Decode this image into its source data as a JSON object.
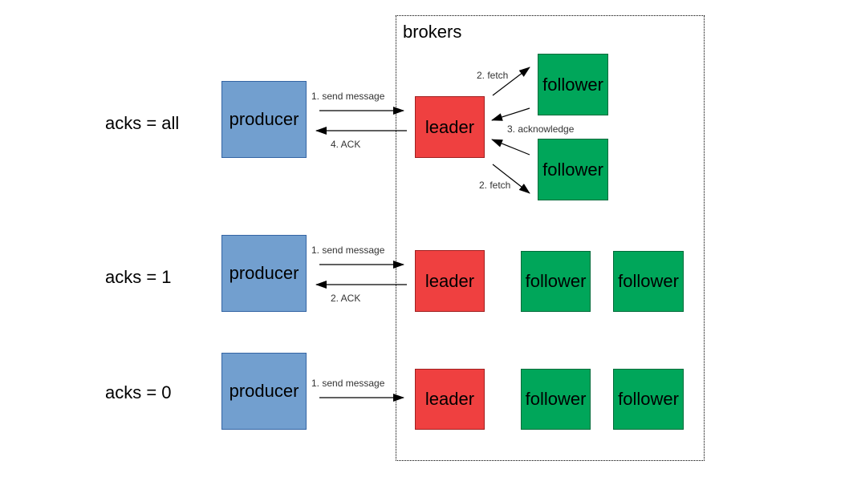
{
  "brokers_label": "brokers",
  "rows": [
    {
      "label": "acks = all",
      "producer": "producer",
      "leader": "leader",
      "followers": [
        "follower",
        "follower"
      ],
      "send": "1. send message",
      "ack": "4. ACK",
      "fetch_top": "2. fetch",
      "fetch_bottom": "2. fetch",
      "acknowledge": "3. acknowledge"
    },
    {
      "label": "acks = 1",
      "producer": "producer",
      "leader": "leader",
      "followers": [
        "follower",
        "follower"
      ],
      "send": "1. send message",
      "ack": "2. ACK"
    },
    {
      "label": "acks = 0",
      "producer": "producer",
      "leader": "leader",
      "followers": [
        "follower",
        "follower"
      ],
      "send": "1. send message"
    }
  ],
  "colors": {
    "producer": "#729fcf",
    "leader": "#ef4040",
    "follower": "#00a65a"
  }
}
